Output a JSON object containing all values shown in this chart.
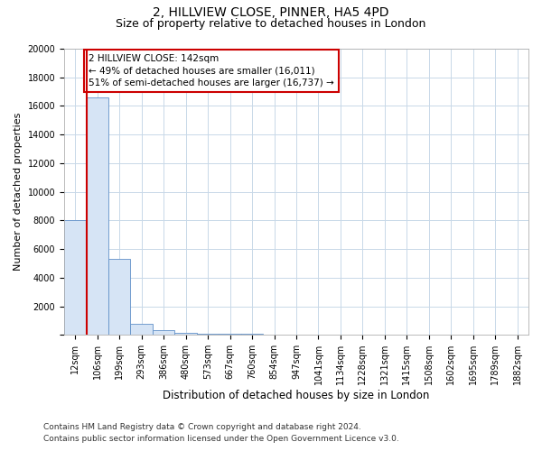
{
  "title1": "2, HILLVIEW CLOSE, PINNER, HA5 4PD",
  "title2": "Size of property relative to detached houses in London",
  "xlabel": "Distribution of detached houses by size in London",
  "ylabel": "Number of detached properties",
  "bin_labels": [
    "12sqm",
    "106sqm",
    "199sqm",
    "293sqm",
    "386sqm",
    "480sqm",
    "573sqm",
    "667sqm",
    "760sqm",
    "854sqm",
    "947sqm",
    "1041sqm",
    "1134sqm",
    "1228sqm",
    "1321sqm",
    "1415sqm",
    "1508sqm",
    "1602sqm",
    "1695sqm",
    "1789sqm",
    "1882sqm"
  ],
  "bar_heights": [
    8000,
    16600,
    5300,
    800,
    350,
    170,
    100,
    70,
    50,
    40,
    30,
    20,
    15,
    10,
    8,
    8,
    6,
    5,
    4,
    3,
    2
  ],
  "bar_color": "#d6e4f5",
  "bar_edge_color": "#6090c8",
  "red_line_x": 0.5,
  "red_line_color": "#cc0000",
  "annotation_text": "2 HILLVIEW CLOSE: 142sqm\n← 49% of detached houses are smaller (16,011)\n51% of semi-detached houses are larger (16,737) →",
  "annotation_box_color": "#ffffff",
  "annotation_box_edge": "#cc0000",
  "footer1": "Contains HM Land Registry data © Crown copyright and database right 2024.",
  "footer2": "Contains public sector information licensed under the Open Government Licence v3.0.",
  "ylim": [
    0,
    20000
  ],
  "yticks": [
    0,
    2000,
    4000,
    6000,
    8000,
    10000,
    12000,
    14000,
    16000,
    18000,
    20000
  ],
  "grid_color": "#c8d8e8",
  "title1_fontsize": 10,
  "title2_fontsize": 9,
  "xlabel_fontsize": 8.5,
  "ylabel_fontsize": 8,
  "tick_fontsize": 7,
  "footer_fontsize": 6.5,
  "annotation_fontsize": 7.5
}
